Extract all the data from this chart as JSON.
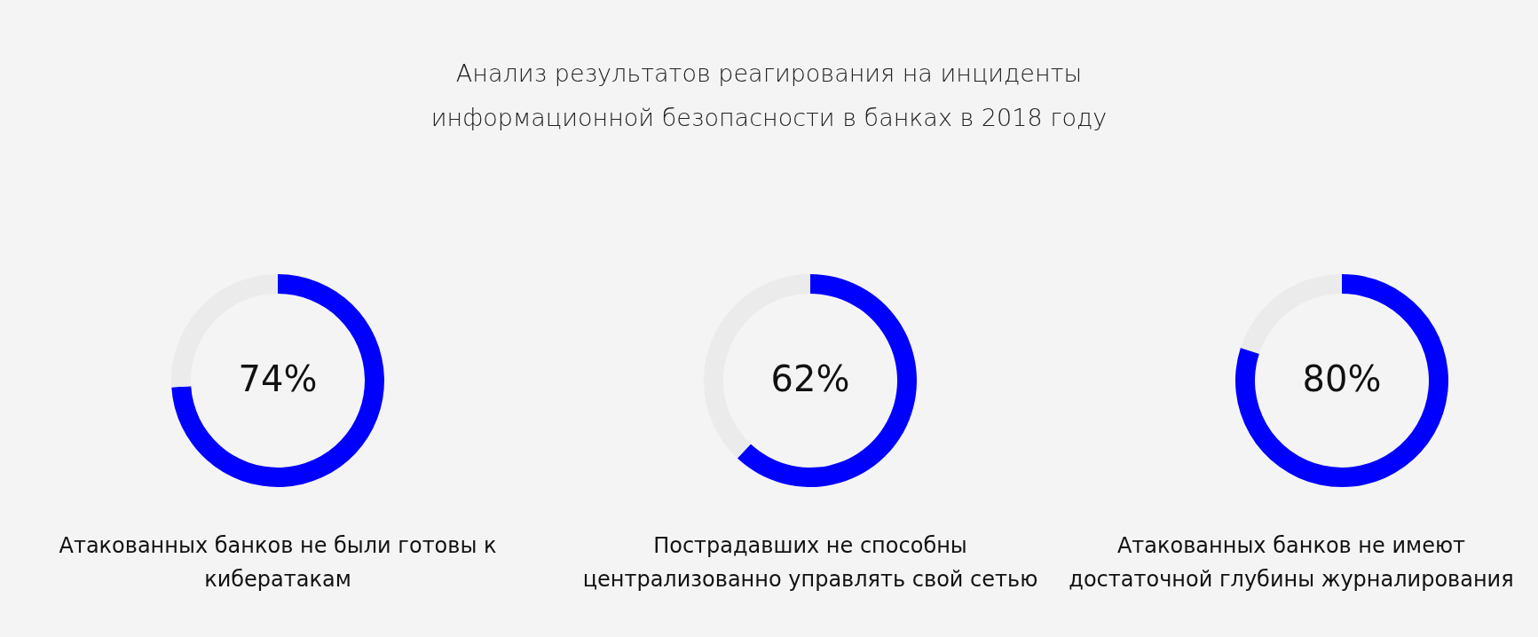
{
  "chart_data": [
    {
      "type": "other",
      "title": "Анализ результатов реагирования на инциденты\nинформационной безопасности в банках в 2018 году"
    },
    {
      "type": "donut",
      "title": "Атакованных банков не были готовы к кибератакам",
      "categories": [
        null,
        null
      ],
      "values": [
        74,
        26
      ],
      "colors": [
        "#0000ff",
        "#ebebeb"
      ],
      "annotations": [
        "74%"
      ]
    },
    {
      "type": "donut",
      "title": "Пострадавших не способны централизованно управлять свой сетью",
      "categories": [
        null,
        null
      ],
      "values": [
        62,
        38
      ],
      "colors": [
        "#0000ff",
        "#ebebeb"
      ],
      "annotations": [
        "62%"
      ]
    },
    {
      "type": "donut",
      "title": "Атакованных банков не имеют достаточной глубины журналирования",
      "categories": [
        null,
        null
      ],
      "values": [
        80,
        20
      ],
      "colors": [
        "#0000ff",
        "#ebebeb"
      ],
      "annotations": [
        "80%"
      ]
    }
  ]
}
